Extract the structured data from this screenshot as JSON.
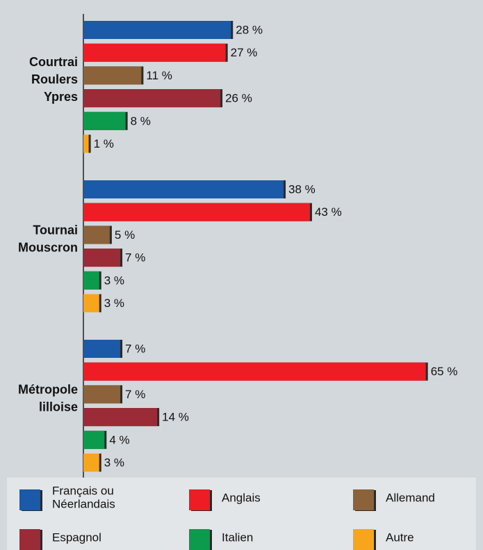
{
  "chart_data": {
    "type": "bar",
    "orientation": "horizontal",
    "categories": [
      "Courtrai\nRoulers\nYpres",
      "Tournai\nMouscron",
      "Métropole\nlilloise"
    ],
    "series": [
      {
        "name": "Français ou\nNéerlandais",
        "color": "#1a5aa8",
        "values": [
          28,
          38,
          7
        ],
        "value_labels": [
          "28 %",
          "38 %",
          "7 %"
        ]
      },
      {
        "name": "Anglais",
        "color": "#ee1c25",
        "values": [
          27,
          43,
          65
        ],
        "value_labels": [
          "27 %",
          "43 %",
          "65 %"
        ]
      },
      {
        "name": "Allemand",
        "color": "#8b6239",
        "values": [
          11,
          5,
          7
        ],
        "value_labels": [
          "11 %",
          "5 %",
          "7 %"
        ]
      },
      {
        "name": "Espagnol",
        "color": "#9b2b37",
        "values": [
          26,
          7,
          14
        ],
        "value_labels": [
          "26 %",
          "7 %",
          "14 %"
        ]
      },
      {
        "name": "Italien",
        "color": "#0c9a4c",
        "values": [
          8,
          3,
          4
        ],
        "value_labels": [
          "8 %",
          "3 %",
          "4 %"
        ]
      },
      {
        "name": "Autre",
        "color": "#f7a51c",
        "values": [
          1,
          3,
          3
        ],
        "value_labels": [
          "1 %",
          "3 %",
          "3 %"
        ]
      }
    ]
  }
}
